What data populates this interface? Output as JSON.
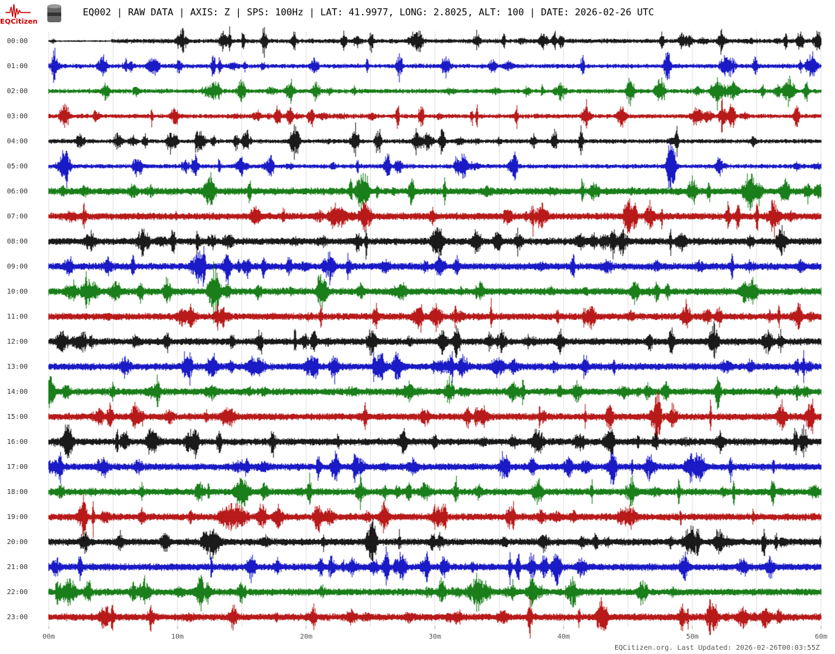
{
  "chart_data": {
    "type": "helicorder",
    "title": "EQ002 | RAW DATA | AXIS: Z | SPS: 100Hz | LAT: 41.9977, LONG: 2.8025, ALT: 100 | DATE: 2026-02-26 UTC",
    "logo": "EQCitizen",
    "footer": "EQCitizen.org. Last Updated: 2026-02-26T00:03:55Z",
    "categories": [
      "00:00",
      "01:00",
      "02:00",
      "03:00",
      "04:00",
      "05:00",
      "06:00",
      "07:00",
      "08:00",
      "09:00",
      "10:00",
      "11:00",
      "12:00",
      "13:00",
      "14:00",
      "15:00",
      "16:00",
      "17:00",
      "18:00",
      "19:00",
      "20:00",
      "21:00",
      "22:00",
      "23:00"
    ],
    "colors": [
      "#000000",
      "#0000c0",
      "#007000",
      "#b00000"
    ],
    "xlim": [
      0,
      60
    ],
    "xticks": [
      {
        "value": 0,
        "label": "00m"
      },
      {
        "value": 10,
        "label": "10m"
      },
      {
        "value": 20,
        "label": "20m"
      },
      {
        "value": 30,
        "label": "30m"
      },
      {
        "value": 40,
        "label": "40m"
      },
      {
        "value": 50,
        "label": "50m"
      },
      {
        "value": 60,
        "label": "60m"
      }
    ],
    "xgrid": [
      0,
      5,
      10,
      15,
      20,
      25,
      30,
      35,
      40,
      45,
      50,
      55,
      60
    ]
  }
}
